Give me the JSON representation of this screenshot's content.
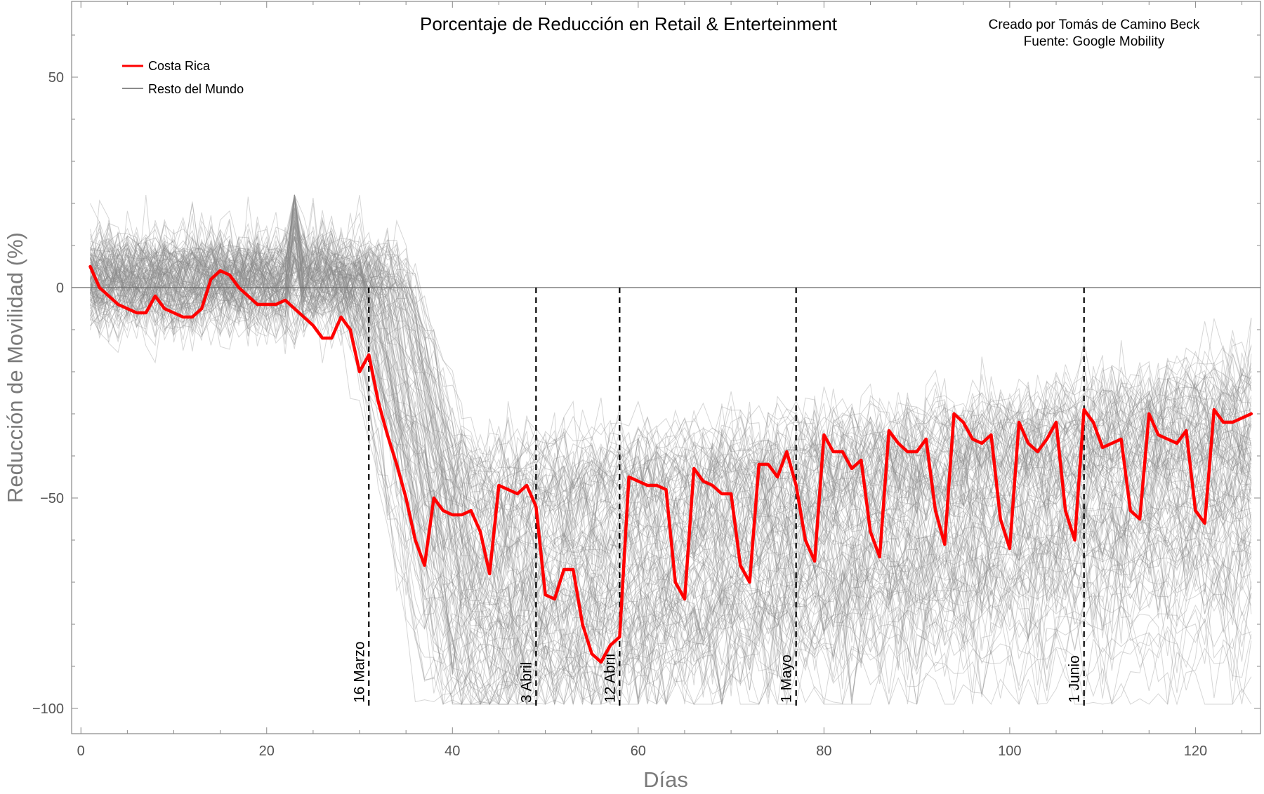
{
  "chart_data": {
    "type": "line",
    "title": "Porcentaje de Reducción en Retail & Enterteinment",
    "credit_line1": "Creado por Tomás de Camino Beck",
    "credit_line2": "Fuente: Google Mobility",
    "xlabel": "Días",
    "ylabel": "Reducción de Movilidad (%)",
    "xlim": [
      -1,
      127
    ],
    "ylim": [
      -106,
      68
    ],
    "xticks": [
      0,
      20,
      40,
      60,
      80,
      100,
      120
    ],
    "yticks": [
      50,
      0,
      -50,
      -100
    ],
    "xtick_labels": [
      "0",
      "20",
      "40",
      "60",
      "80",
      "100",
      "120"
    ],
    "ytick_labels": [
      "50",
      "0",
      "−50",
      "−100"
    ],
    "legend": [
      {
        "name": "Costa Rica",
        "color": "#ff0000"
      },
      {
        "name": "Resto del Mundo",
        "color": "#8c8c8c"
      }
    ],
    "annotations": [
      {
        "x": 31,
        "label": "16 Marzo"
      },
      {
        "x": 49,
        "label": "3 Abril"
      },
      {
        "x": 58,
        "label": "12 Abril"
      },
      {
        "x": 77,
        "label": "1 Mayo"
      },
      {
        "x": 108,
        "label": "1 Junio"
      }
    ],
    "series": [
      {
        "name": "Costa Rica",
        "color": "#ff0000",
        "x_start": 1,
        "values": [
          5,
          0,
          -2,
          -4,
          -5,
          -6,
          -6,
          -2,
          -5,
          -6,
          -7,
          -7,
          -5,
          2,
          4,
          3,
          0,
          -2,
          -4,
          -4,
          -4,
          -3,
          -5,
          -7,
          -9,
          -12,
          -12,
          -7,
          -10,
          -20,
          -16,
          -27,
          -35,
          -42,
          -50,
          -60,
          -66,
          -50,
          -53,
          -54,
          -54,
          -53,
          -58,
          -68,
          -47,
          -48,
          -49,
          -47,
          -52,
          -73,
          -74,
          -67,
          -67,
          -80,
          -87,
          -89,
          -85,
          -83,
          -45,
          -46,
          -47,
          -47,
          -48,
          -70,
          -74,
          -43,
          -46,
          -47,
          -49,
          -49,
          -66,
          -70,
          -42,
          -42,
          -45,
          -39,
          -47,
          -60,
          -65,
          -35,
          -39,
          -39,
          -43,
          -41,
          -58,
          -64,
          -34,
          -37,
          -39,
          -39,
          -36,
          -53,
          -61,
          -30,
          -32,
          -36,
          -37,
          -35,
          -55,
          -62,
          -32,
          -37,
          -39,
          -36,
          -32,
          -53,
          -60,
          -29,
          -32,
          -38,
          -37,
          -36,
          -53,
          -55,
          -30,
          -35,
          -36,
          -37,
          -34,
          -53,
          -56,
          -29,
          -32,
          -32,
          -31,
          -30
        ]
      },
      {
        "name": "Resto del Mundo",
        "color": "#8c8c8c",
        "count": 120
      }
    ]
  }
}
